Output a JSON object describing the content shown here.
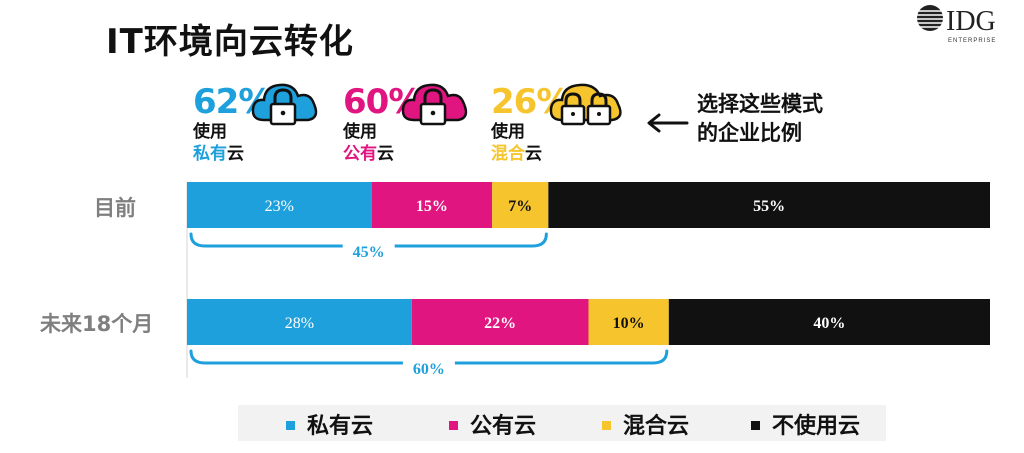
{
  "title": "IT环境向云转化",
  "logo": {
    "brand": "IDG",
    "sub": "ENTERPRISE"
  },
  "stats": [
    {
      "pct": "62%",
      "use": "使用",
      "kind": "私有",
      "suffix": "云",
      "color": "#1ea0dc"
    },
    {
      "pct": "60%",
      "use": "使用",
      "kind": "公有",
      "suffix": "云",
      "color": "#e0157f"
    },
    {
      "pct": "26%",
      "use": "使用",
      "kind": "混合",
      "suffix": "云",
      "color": "#f6c52d"
    }
  ],
  "note": {
    "line1": "选择这些模式",
    "line2": "的企业比例"
  },
  "chart_data": {
    "type": "bar",
    "orientation": "horizontal",
    "stacked": true,
    "percent_total": 100,
    "categories": [
      "目前",
      "未来18个月"
    ],
    "series": [
      {
        "name": "私有云",
        "color": "#1ea0dc",
        "values": [
          23,
          28
        ]
      },
      {
        "name": "公有云",
        "color": "#e0157f",
        "values": [
          15,
          22
        ]
      },
      {
        "name": "混合云",
        "color": "#f6c52d",
        "values": [
          7,
          10
        ]
      },
      {
        "name": "不使用云",
        "color": "#111111",
        "values": [
          55,
          40
        ]
      }
    ],
    "bar_labels": [
      [
        "23%",
        "15%",
        "7%",
        "55%"
      ],
      [
        "28%",
        "22%",
        "10%",
        "40%"
      ]
    ],
    "bracket_labels": [
      "45%",
      "60%"
    ],
    "legend": [
      "私有云",
      "公有云",
      "混合云",
      "不使用云"
    ],
    "legend_position": "bottom"
  }
}
